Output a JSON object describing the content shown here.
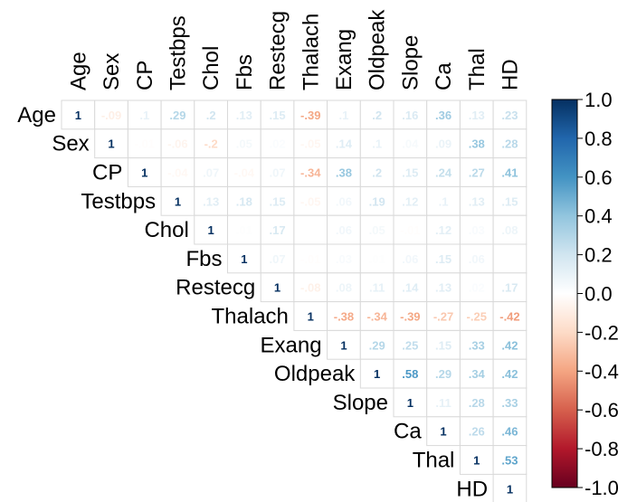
{
  "chart_data": {
    "type": "heatmap",
    "style": "upper-triangular correlation matrix",
    "variables": [
      "Age",
      "Sex",
      "CP",
      "Testbps",
      "Chol",
      "Fbs",
      "Restecg",
      "Thalach",
      "Exang",
      "Oldpeak",
      "Slope",
      "Ca",
      "Thal",
      "HD"
    ],
    "matrix": [
      [
        1,
        -0.09,
        0.1,
        0.29,
        0.2,
        0.13,
        0.15,
        -0.39,
        0.1,
        0.2,
        0.16,
        0.36,
        0.13,
        0.23
      ],
      [
        null,
        1,
        -0.01,
        -0.06,
        -0.2,
        0.05,
        0.02,
        -0.05,
        0.14,
        0.1,
        0.04,
        0.09,
        0.38,
        0.28
      ],
      [
        null,
        null,
        1,
        -0.04,
        0.07,
        -0.04,
        0.07,
        -0.34,
        0.38,
        0.2,
        0.15,
        0.24,
        0.27,
        0.41
      ],
      [
        null,
        null,
        null,
        1,
        0.13,
        0.18,
        0.15,
        -0.05,
        0.06,
        0.19,
        0.12,
        0.1,
        0.13,
        0.15
      ],
      [
        null,
        null,
        null,
        null,
        1,
        0.01,
        0.17,
        0.0,
        0.06,
        0.05,
        -0.01,
        0.12,
        0.03,
        0.08
      ],
      [
        null,
        null,
        null,
        null,
        null,
        1,
        0.07,
        -0.01,
        0.03,
        0.01,
        0.06,
        0.15,
        0.06,
        0.0
      ],
      [
        null,
        null,
        null,
        null,
        null,
        null,
        1,
        -0.08,
        0.08,
        0.11,
        0.14,
        0.13,
        0.02,
        0.17
      ],
      [
        null,
        null,
        null,
        null,
        null,
        null,
        null,
        1,
        -0.38,
        -0.34,
        -0.39,
        -0.27,
        -0.25,
        -0.42
      ],
      [
        null,
        null,
        null,
        null,
        null,
        null,
        null,
        null,
        1,
        0.29,
        0.25,
        0.15,
        0.33,
        0.42
      ],
      [
        null,
        null,
        null,
        null,
        null,
        null,
        null,
        null,
        null,
        1,
        0.58,
        0.29,
        0.34,
        0.42
      ],
      [
        null,
        null,
        null,
        null,
        null,
        null,
        null,
        null,
        null,
        null,
        1,
        0.11,
        0.28,
        0.33
      ],
      [
        null,
        null,
        null,
        null,
        null,
        null,
        null,
        null,
        null,
        null,
        null,
        1,
        0.26,
        0.46
      ],
      [
        null,
        null,
        null,
        null,
        null,
        null,
        null,
        null,
        null,
        null,
        null,
        null,
        1,
        0.53
      ],
      [
        null,
        null,
        null,
        null,
        null,
        null,
        null,
        null,
        null,
        null,
        null,
        null,
        null,
        1
      ]
    ],
    "value_range": [
      -1.0,
      1.0
    ],
    "colorbar": {
      "ticks": [
        1.0,
        0.8,
        0.6,
        0.4,
        0.2,
        0.0,
        -0.2,
        -0.4,
        -0.6,
        -0.8,
        -1.0
      ],
      "tick_labels": [
        "1.0",
        "0.8",
        "0.6",
        "0.4",
        "0.2",
        "0.0",
        "-0.2",
        "-0.4",
        "-0.6",
        "-0.8",
        "-1.0"
      ],
      "colors": {
        "negative": "#67001F",
        "mid": "#FFFFFF",
        "positive": "#053061"
      }
    },
    "title": "",
    "xlabel": "",
    "ylabel": ""
  }
}
